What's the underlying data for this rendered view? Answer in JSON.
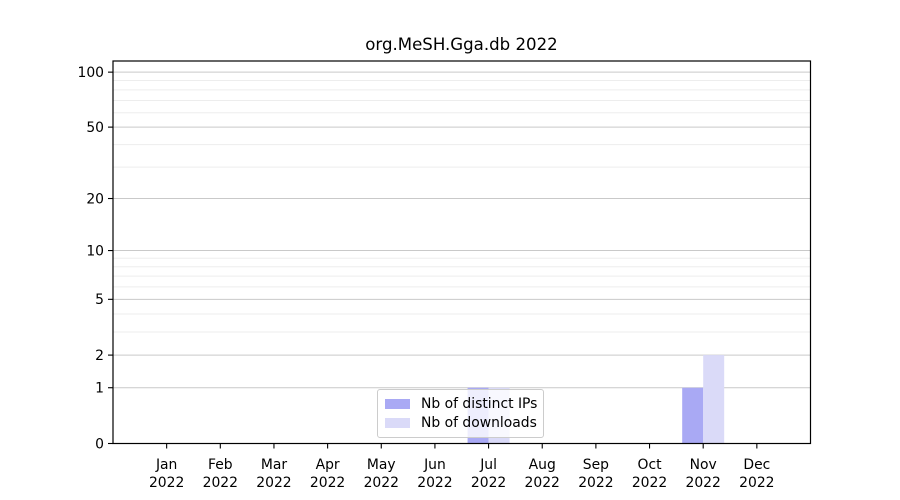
{
  "chart_data": {
    "type": "bar",
    "title": "org.MeSH.Gga.db 2022",
    "categories": [
      "Jan 2022",
      "Feb 2022",
      "Mar 2022",
      "Apr 2022",
      "May 2022",
      "Jun 2022",
      "Jul 2022",
      "Aug 2022",
      "Sep 2022",
      "Oct 2022",
      "Nov 2022",
      "Dec 2022"
    ],
    "series": [
      {
        "name": "Nb of distinct IPs",
        "color": "#a9a9f4",
        "values": [
          0,
          0,
          0,
          0,
          0,
          0,
          1,
          0,
          0,
          0,
          1,
          0
        ]
      },
      {
        "name": "Nb of downloads",
        "color": "#dadaf8",
        "values": [
          0,
          0,
          0,
          0,
          0,
          0,
          1,
          0,
          0,
          0,
          2,
          0
        ]
      }
    ],
    "xlabel": "",
    "ylabel": "",
    "yscale": "log1p",
    "ylim": [
      0,
      115
    ],
    "yticks": [
      0,
      1,
      2,
      5,
      10,
      20,
      50,
      100
    ],
    "yticks_minor": [
      3,
      4,
      6,
      7,
      8,
      9,
      30,
      40,
      60,
      70,
      80,
      90
    ],
    "grid": "horizontal",
    "legend_position": "lower center inside"
  },
  "colors": {
    "background": "#ffffff",
    "axis": "#000000",
    "tick_label": "#000000",
    "grid_major": "#c9c9c9",
    "grid_minor": "#ededed",
    "legend_border": "#cccccc"
  }
}
